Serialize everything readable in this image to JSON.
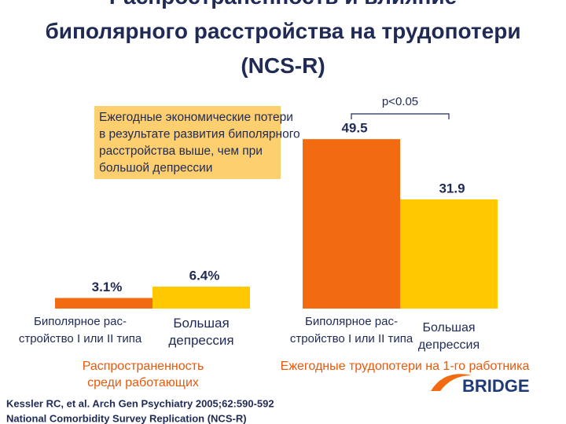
{
  "title": "Распространенность и влияние\nбиполярного расстройства на трудопотери\n(NCS-R)",
  "callout": "Ежегодные экономические потери\nв результате развития биполярного\nрасстройства выше, чем при\nбольшой депрессии",
  "chart_data": [
    {
      "type": "bar",
      "title": "Распространенность\nсреди работающих",
      "categories": [
        "Биполярное рас-\nстройство I или II типа",
        "Большая\nдепрессия"
      ],
      "values": [
        3.1,
        6.4
      ],
      "value_labels": [
        "3.1%",
        "6.4%"
      ],
      "colors": [
        "#F26B10",
        "#FFC800"
      ]
    },
    {
      "type": "bar",
      "title": "Ежегодные трудопотери на 1-го работника",
      "categories": [
        "Биполярное рас-\nстройство I или II типа",
        "Большая\nдепрессия"
      ],
      "values": [
        49.5,
        31.9
      ],
      "colors": [
        "#F26B10",
        "#FFC800"
      ],
      "annotation": "p<0.05"
    }
  ],
  "source": [
    "Kessler RC, et al. Arch Gen Psychiatry 2005;62:590-592",
    "National Comorbidity Survey Replication (NCS-R)"
  ],
  "logo": "BRIDGE"
}
